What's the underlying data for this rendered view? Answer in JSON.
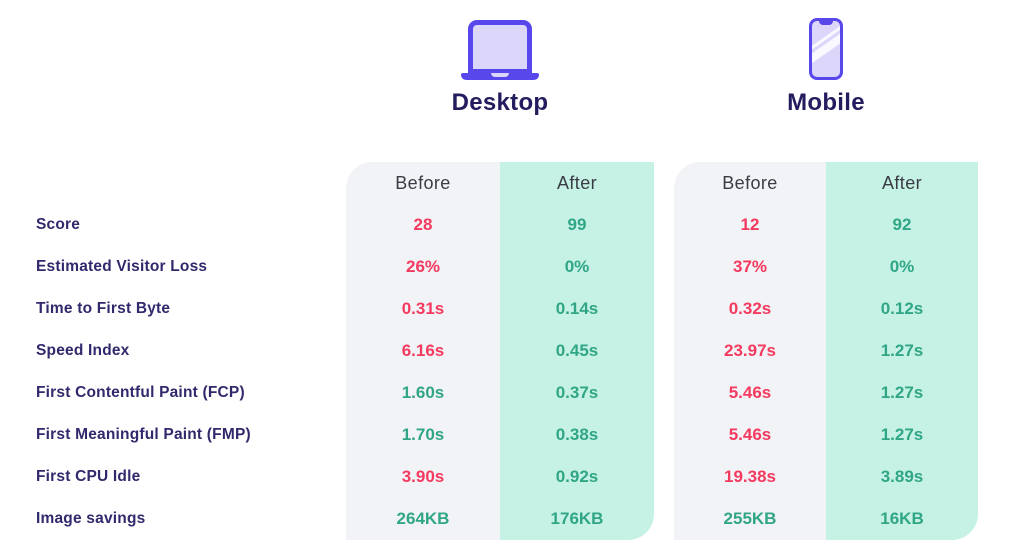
{
  "header": {
    "desktop_title": "Desktop",
    "mobile_title": "Mobile",
    "desktop_icon": "laptop-icon",
    "mobile_icon": "smartphone-icon"
  },
  "columns": {
    "before": "Before",
    "after": "After"
  },
  "colors": {
    "bad": "#f43a5f",
    "good": "#31a686",
    "accent": "#5848eb",
    "icon_fill": "#dcd6fa",
    "before_bg": "#f2f3f6",
    "after_bg": "#c5f2e4",
    "label_text": "#302a6d",
    "heading_text": "#231c5e"
  },
  "rows": [
    {
      "label": "Score",
      "d_before": "28",
      "d_before_status": "bad",
      "d_after": "99",
      "d_after_status": "good",
      "m_before": "12",
      "m_before_status": "bad",
      "m_after": "92",
      "m_after_status": "good"
    },
    {
      "label": "Estimated Visitor Loss",
      "d_before": "26%",
      "d_before_status": "bad",
      "d_after": "0%",
      "d_after_status": "good",
      "m_before": "37%",
      "m_before_status": "bad",
      "m_after": "0%",
      "m_after_status": "good"
    },
    {
      "label": "Time to First Byte",
      "d_before": "0.31s",
      "d_before_status": "bad",
      "d_after": "0.14s",
      "d_after_status": "good",
      "m_before": "0.32s",
      "m_before_status": "bad",
      "m_after": "0.12s",
      "m_after_status": "good"
    },
    {
      "label": "Speed Index",
      "d_before": "6.16s",
      "d_before_status": "bad",
      "d_after": "0.45s",
      "d_after_status": "good",
      "m_before": "23.97s",
      "m_before_status": "bad",
      "m_after": "1.27s",
      "m_after_status": "good"
    },
    {
      "label": "First Contentful Paint (FCP)",
      "d_before": "1.60s",
      "d_before_status": "good",
      "d_after": "0.37s",
      "d_after_status": "good",
      "m_before": "5.46s",
      "m_before_status": "bad",
      "m_after": "1.27s",
      "m_after_status": "good"
    },
    {
      "label": "First Meaningful Paint (FMP)",
      "d_before": "1.70s",
      "d_before_status": "good",
      "d_after": "0.38s",
      "d_after_status": "good",
      "m_before": "5.46s",
      "m_before_status": "bad",
      "m_after": "1.27s",
      "m_after_status": "good"
    },
    {
      "label": "First CPU Idle",
      "d_before": "3.90s",
      "d_before_status": "bad",
      "d_after": "0.92s",
      "d_after_status": "good",
      "m_before": "19.38s",
      "m_before_status": "bad",
      "m_after": "3.89s",
      "m_after_status": "good"
    },
    {
      "label": "Image savings",
      "d_before": "264KB",
      "d_before_status": "good",
      "d_after": "176KB",
      "d_after_status": "good",
      "m_before": "255KB",
      "m_before_status": "good",
      "m_after": "16KB",
      "m_after_status": "good"
    }
  ],
  "chart_data": {
    "type": "table",
    "title": "",
    "groups": [
      "Desktop",
      "Mobile"
    ],
    "columns": [
      "Before",
      "After"
    ],
    "metrics": [
      "Score",
      "Estimated Visitor Loss",
      "Time to First Byte",
      "Speed Index",
      "First Contentful Paint (FCP)",
      "First Meaningful Paint (FMP)",
      "First CPU Idle",
      "Image savings"
    ],
    "desktop": {
      "before": [
        "28",
        "26%",
        "0.31s",
        "6.16s",
        "1.60s",
        "1.70s",
        "3.90s",
        "264KB"
      ],
      "after": [
        "99",
        "0%",
        "0.14s",
        "0.45s",
        "0.37s",
        "0.38s",
        "0.92s",
        "176KB"
      ]
    },
    "mobile": {
      "before": [
        "12",
        "37%",
        "0.32s",
        "23.97s",
        "5.46s",
        "5.46s",
        "19.38s",
        "255KB"
      ],
      "after": [
        "92",
        "0%",
        "0.12s",
        "1.27s",
        "1.27s",
        "1.27s",
        "3.89s",
        "16KB"
      ]
    }
  }
}
